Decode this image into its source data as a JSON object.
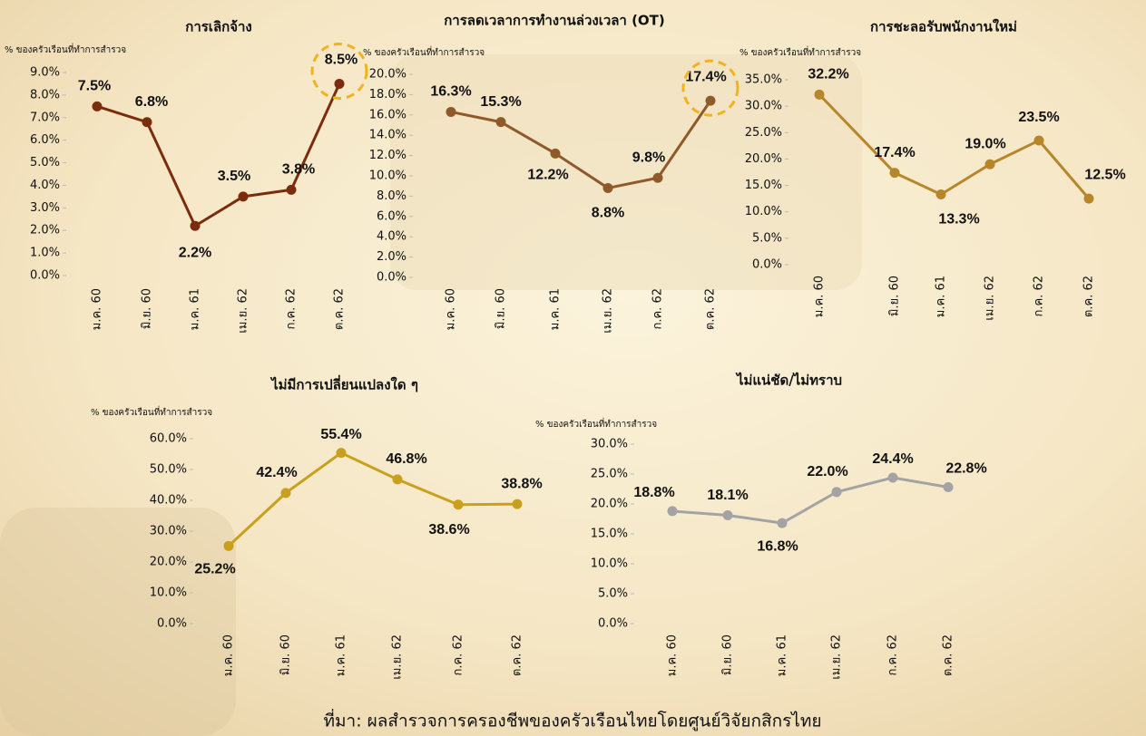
{
  "chart_data": [
    {
      "type": "line",
      "title": "การเลิกจ้าง",
      "y_label": "% ของครัวเรือนที่ทำการสำรวจ",
      "categories": [
        "ม.ค. 60",
        "มิ.ย. 60",
        "ม.ค. 61",
        "เม.ย. 62",
        "ก.ค. 62",
        "ต.ค. 62"
      ],
      "values": [
        7.5,
        6.8,
        2.2,
        3.5,
        3.8,
        8.5
      ],
      "value_labels": [
        "7.5%",
        "6.8%",
        "2.2%",
        "3.5%",
        "3.8%",
        "8.5%"
      ],
      "color": "#7a2c0c",
      "ylim": [
        0,
        9
      ],
      "yticks": [
        {
          "value": 0,
          "label": "0.0%"
        },
        {
          "value": 1,
          "label": "1.0%"
        },
        {
          "value": 2,
          "label": "2.0%"
        },
        {
          "value": 3,
          "label": "3.0%"
        },
        {
          "value": 4,
          "label": "4.0%"
        },
        {
          "value": 5,
          "label": "5.0%"
        },
        {
          "value": 6,
          "label": "6.0%"
        },
        {
          "value": 7,
          "label": "7.0%"
        },
        {
          "value": 8,
          "label": "8.0%"
        },
        {
          "value": 9,
          "label": "9.0%"
        }
      ]
    },
    {
      "type": "line",
      "title": "การลดเวลาการทำงานล่วงเวลา (OT)",
      "y_label": "% ของครัวเรือนที่ทำการสำรวจ",
      "categories": [
        "ม.ค. 60",
        "มิ.ย. 60",
        "ม.ค. 61",
        "เม.ย. 62",
        "ก.ค. 62",
        "ต.ค. 62"
      ],
      "values": [
        16.3,
        15.3,
        12.2,
        8.8,
        9.8,
        17.4
      ],
      "value_labels": [
        "16.3%",
        "15.3%",
        "12.2%",
        "8.8%",
        "9.8%",
        "17.4%"
      ],
      "color": "#8e5a2a",
      "ylim": [
        0,
        20
      ],
      "yticks": [
        {
          "value": 0,
          "label": "0.0%"
        },
        {
          "value": 2,
          "label": "2.0%"
        },
        {
          "value": 4,
          "label": "4.0%"
        },
        {
          "value": 6,
          "label": "6.0%"
        },
        {
          "value": 8,
          "label": "8.0%"
        },
        {
          "value": 10,
          "label": "10.0%"
        },
        {
          "value": 12,
          "label": "12.0%"
        },
        {
          "value": 14,
          "label": "14.0%"
        },
        {
          "value": 16,
          "label": "16.0%"
        },
        {
          "value": 18,
          "label": "18.0%"
        },
        {
          "value": 20,
          "label": "20.0%"
        }
      ]
    },
    {
      "type": "line",
      "title": "การชะลอรับพนักงานใหม่",
      "y_label": "% ของครัวเรือนที่ทำการสำรวจ",
      "categories": [
        "ม.ค. 60",
        "มิ.ย. 60",
        "ม.ค. 61",
        "เม.ย. 62",
        "ก.ค. 62",
        "ต.ค. 62"
      ],
      "values": [
        32.2,
        17.4,
        13.3,
        19.0,
        23.5,
        12.5
      ],
      "value_labels": [
        "32.2%",
        "17.4%",
        "13.3%",
        "19.0%",
        "23.5%",
        "12.5%"
      ],
      "color": "#b7862a",
      "ylim": [
        0,
        35
      ],
      "yticks": [
        {
          "value": 0,
          "label": "0.0%"
        },
        {
          "value": 5,
          "label": "5.0%"
        },
        {
          "value": 10,
          "label": "10.0%"
        },
        {
          "value": 15,
          "label": "15.0%"
        },
        {
          "value": 20,
          "label": "20.0%"
        },
        {
          "value": 25,
          "label": "25.0%"
        },
        {
          "value": 30,
          "label": "30.0%"
        },
        {
          "value": 35,
          "label": "35.0%"
        }
      ]
    },
    {
      "type": "line",
      "title": "ไม่มีการเปลี่ยนแปลงใด ๆ",
      "y_label": "% ของครัวเรือนที่ทำการสำรวจ",
      "categories": [
        "ม.ค. 60",
        "มิ.ย. 60",
        "ม.ค. 61",
        "เม.ย. 62",
        "ก.ค. 62",
        "ต.ค. 62"
      ],
      "values": [
        25.2,
        42.4,
        55.4,
        46.8,
        38.6,
        38.8
      ],
      "value_labels": [
        "25.2%",
        "42.4%",
        "55.4%",
        "46.8%",
        "38.6%",
        "38.8%"
      ],
      "color": "#c9a01e",
      "ylim": [
        0,
        60
      ],
      "yticks": [
        {
          "value": 0,
          "label": "0.0%"
        },
        {
          "value": 10,
          "label": "10.0%"
        },
        {
          "value": 20,
          "label": "20.0%"
        },
        {
          "value": 30,
          "label": "30.0%"
        },
        {
          "value": 40,
          "label": "40.0%"
        },
        {
          "value": 50,
          "label": "50.0%"
        },
        {
          "value": 60,
          "label": "60.0%"
        }
      ]
    },
    {
      "type": "line",
      "title": "ไม่แน่ชัด/ไม่ทราบ",
      "y_label": "% ของครัวเรือนที่ทำการสำรวจ",
      "categories": [
        "ม.ค. 60",
        "มิ.ย. 60",
        "ม.ค. 61",
        "เม.ย. 62",
        "ก.ค. 62",
        "ต.ค. 62"
      ],
      "values": [
        18.8,
        18.1,
        16.8,
        22.0,
        24.4,
        22.8
      ],
      "value_labels": [
        "18.8%",
        "18.1%",
        "16.8%",
        "22.0%",
        "24.4%",
        "22.8%"
      ],
      "color": "#a3a3a3",
      "ylim": [
        0,
        30
      ],
      "yticks": [
        {
          "value": 0,
          "label": "0.0%"
        },
        {
          "value": 5,
          "label": "5.0%"
        },
        {
          "value": 10,
          "label": "10.0%"
        },
        {
          "value": 15,
          "label": "15.0%"
        },
        {
          "value": 20,
          "label": "20.0%"
        },
        {
          "value": 25,
          "label": "25.0%"
        },
        {
          "value": 30,
          "label": "30.0%"
        }
      ]
    }
  ],
  "source": "ที่มา: ผลสำรวจการครองชีพของครัวเรือนไทยโดยศูนย์วิจัยกสิกรไทย"
}
